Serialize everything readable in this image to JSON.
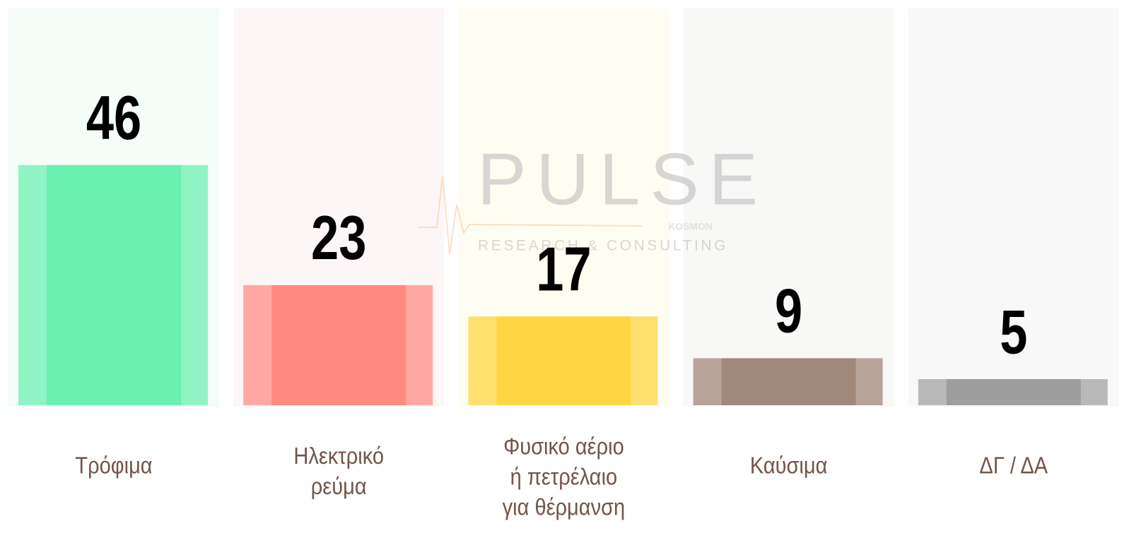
{
  "chart_data": {
    "type": "bar",
    "categories": [
      [
        "Τρόφιμα"
      ],
      [
        "Ηλεκτρικό",
        "ρεύμα"
      ],
      [
        "Φυσικό αέριο",
        "ή πετρέλαιο",
        "για θέρμανση"
      ],
      [
        "Καύσιμα"
      ],
      [
        "ΔΓ / ΔΑ"
      ]
    ],
    "values": [
      46,
      23,
      17,
      9,
      5
    ],
    "colors": [
      "#6af0b0",
      "#ff8a80",
      "#fdd642",
      "#a0887c",
      "#9e9e9e"
    ],
    "edge_colors": [
      "#8ff3c3",
      "#ffa8a1",
      "#fee070",
      "#b8a49a",
      "#b9b9b9"
    ],
    "panel_colors": [
      "#f4fdf8",
      "#fdf6f7",
      "#fffdf2",
      "#f8f8f7",
      "#f8f8f8"
    ],
    "ylim": [
      0,
      76
    ],
    "watermark": {
      "brand": "PULSE",
      "tagline": "RESEARCH & CONSULTING",
      "partner": "KOSMON"
    }
  }
}
